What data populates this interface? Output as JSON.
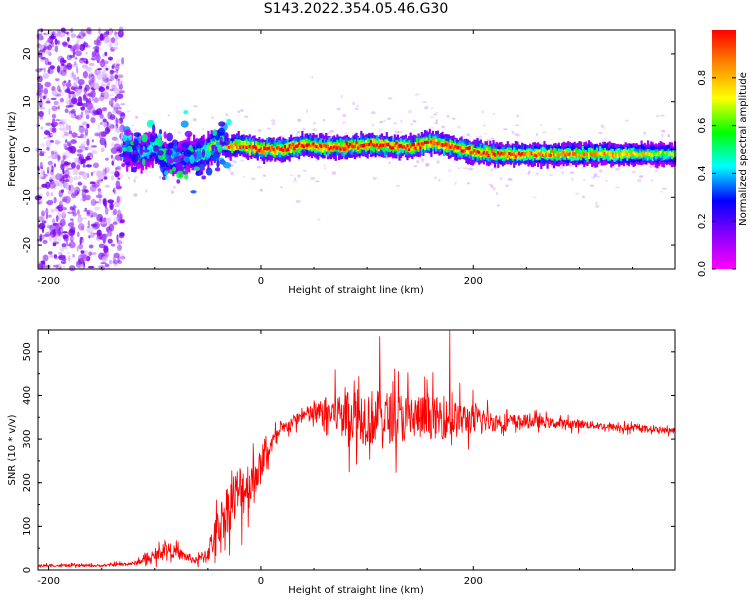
{
  "title": "S143.2022.354.05.46.G30",
  "chart_data": [
    {
      "type": "heatmap",
      "title": "S143.2022.354.05.46.G30",
      "xlabel": "Height of straight line (km)",
      "ylabel": "Frequency (Hz)",
      "xlim": [
        -210,
        390
      ],
      "ylim": [
        -25,
        25
      ],
      "x_ticks": [
        "-200",
        "0",
        "200"
      ],
      "y_ticks": [
        "20",
        "10",
        "0",
        "-10",
        "-20"
      ],
      "colorbar": {
        "label": "Normalized spectral amplitude",
        "range": [
          0,
          1
        ],
        "ticks": [
          "0.0",
          "0.2",
          "0.4",
          "0.6",
          "0.8"
        ],
        "colormap": [
          "#ff00ff",
          "#8800ff",
          "#0000ff",
          "#00ffff",
          "#00ff00",
          "#ffff00",
          "#ff8800",
          "#ff0000"
        ]
      },
      "ridge": {
        "x": [
          -130,
          -115,
          -100,
          -90,
          -80,
          -70,
          -60,
          -50,
          -40,
          -30,
          -20,
          -10,
          0,
          20,
          40,
          60,
          80,
          100,
          120,
          140,
          160,
          180,
          200,
          220,
          240,
          260,
          300,
          340,
          390
        ],
        "y": [
          0.0,
          -1.0,
          0.5,
          -2.0,
          -2.5,
          -1.0,
          -1.5,
          0.0,
          1.5,
          0.5,
          1.0,
          0.5,
          0.0,
          0.0,
          1.0,
          0.5,
          0.5,
          1.0,
          0.8,
          0.5,
          1.5,
          0.5,
          -0.5,
          -1.0,
          -1.0,
          -1.0,
          -1.0,
          -1.0,
          -1.0
        ],
        "peak_amplitude": [
          0.3,
          0.4,
          0.5,
          0.5,
          0.45,
          0.5,
          0.55,
          0.7,
          0.8,
          0.9,
          0.95,
          1.0,
          1.0,
          1.0,
          1.0,
          1.0,
          1.0,
          1.0,
          1.0,
          1.0,
          1.0,
          1.0,
          1.0,
          0.95,
          0.9,
          0.85,
          0.85,
          0.8,
          0.6
        ]
      },
      "noise_region_x": [
        -210,
        -130
      ],
      "noise_amplitude": 0.15
    },
    {
      "type": "line",
      "xlabel": "Height of straight line (km)",
      "ylabel": "SNR (10 * v/v)",
      "xlim": [
        -210,
        390
      ],
      "ylim": [
        0,
        550
      ],
      "x_ticks": [
        "-200",
        "0",
        "200"
      ],
      "y_ticks": [
        "500",
        "400",
        "300",
        "200",
        "100",
        "0"
      ],
      "color": "#ff0000",
      "envelope": {
        "x": [
          -210,
          -150,
          -120,
          -100,
          -90,
          -80,
          -60,
          -50,
          -40,
          -30,
          -20,
          -10,
          0,
          10,
          20,
          30,
          40,
          60,
          80,
          100,
          120,
          140,
          160,
          180,
          200,
          220,
          240,
          260,
          280,
          300,
          320,
          340,
          360,
          380,
          390
        ],
        "mean": [
          10,
          10,
          15,
          30,
          50,
          40,
          20,
          40,
          100,
          150,
          180,
          200,
          240,
          290,
          320,
          340,
          355,
          360,
          360,
          350,
          350,
          350,
          350,
          345,
          345,
          340,
          340,
          340,
          335,
          335,
          330,
          325,
          325,
          320,
          320
        ],
        "spread": [
          5,
          5,
          8,
          20,
          30,
          25,
          15,
          40,
          80,
          110,
          120,
          100,
          60,
          40,
          30,
          25,
          30,
          60,
          110,
          120,
          110,
          100,
          90,
          80,
          60,
          40,
          30,
          25,
          20,
          18,
          15,
          15,
          12,
          12,
          12
        ]
      },
      "notable_peaks": [
        {
          "x": 112,
          "y": 535
        },
        {
          "x": 178,
          "y": 548
        }
      ]
    }
  ]
}
